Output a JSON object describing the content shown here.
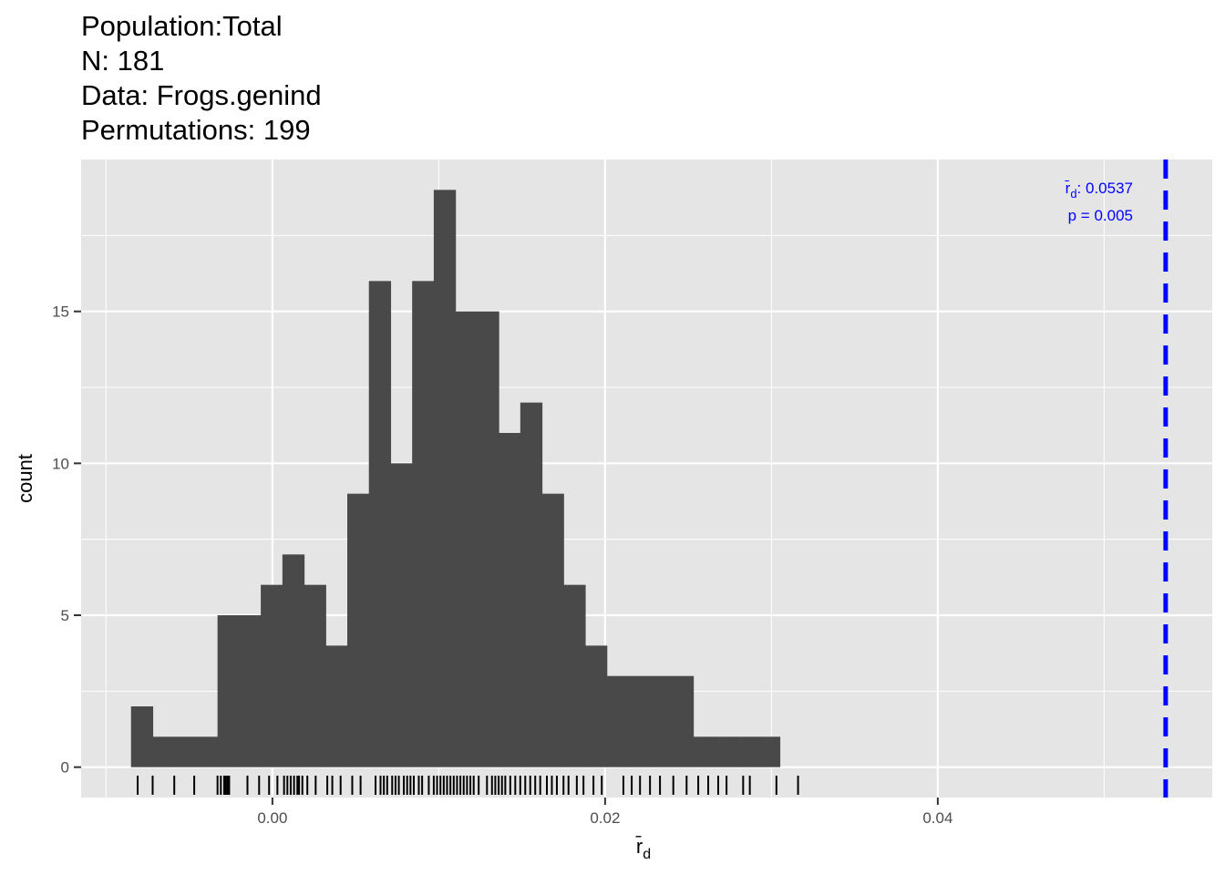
{
  "title_lines": [
    "Population:Total",
    "N: 181",
    "Data: Frogs.genind",
    "Permutations: 199"
  ],
  "chart_data": {
    "type": "bar",
    "xlabel_main": "r̄",
    "xlabel_sub": "d",
    "ylabel": "count",
    "xlim": [
      -0.0115,
      0.0565
    ],
    "ylim": [
      -1.0,
      20.0
    ],
    "x_major_ticks": [
      0.0,
      0.02,
      0.04
    ],
    "x_tick_labels": [
      "0.00",
      "0.02",
      "0.04"
    ],
    "x_minor_ticks": [
      -0.01,
      0.01,
      0.03,
      0.05
    ],
    "y_major_ticks": [
      0,
      5,
      10,
      15
    ],
    "y_tick_labels": [
      "0",
      "5",
      "10",
      "15"
    ],
    "y_minor_ticks": [
      2.5,
      7.5,
      12.5,
      17.5
    ],
    "bin_start": -0.0085,
    "bin_width": 0.0013,
    "counts": [
      2,
      1,
      1,
      1,
      5,
      5,
      6,
      7,
      6,
      4,
      9,
      16,
      10,
      16,
      19,
      15,
      15,
      11,
      12,
      9,
      6,
      4,
      3,
      3,
      3,
      3,
      1,
      1,
      1,
      1
    ],
    "rug_x": [
      -0.0081,
      -0.0072,
      -0.0059,
      -0.0047,
      -0.0033,
      -0.0031,
      -0.0029,
      -0.0028,
      -0.0027,
      -0.0026,
      -0.0015,
      -0.0008,
      -0.0002,
      0.0003,
      0.0007,
      0.0009,
      0.0011,
      0.0013,
      0.0015,
      0.0016,
      0.0018,
      0.0021,
      0.0026,
      0.0033,
      0.0036,
      0.0041,
      0.0048,
      0.0053,
      0.0062,
      0.0065,
      0.0067,
      0.0069,
      0.0072,
      0.0074,
      0.0076,
      0.0079,
      0.0081,
      0.0083,
      0.0085,
      0.0088,
      0.009,
      0.0094,
      0.0097,
      0.0099,
      0.0101,
      0.0103,
      0.0105,
      0.0107,
      0.0109,
      0.0111,
      0.0113,
      0.0115,
      0.0117,
      0.0119,
      0.0121,
      0.0124,
      0.0129,
      0.0132,
      0.0134,
      0.0136,
      0.0138,
      0.014,
      0.0143,
      0.0146,
      0.0149,
      0.0152,
      0.0155,
      0.0158,
      0.0161,
      0.0165,
      0.0168,
      0.0171,
      0.0175,
      0.0178,
      0.0183,
      0.0187,
      0.0193,
      0.0198,
      0.0211,
      0.0216,
      0.0221,
      0.0227,
      0.0233,
      0.0241,
      0.0249,
      0.0256,
      0.0262,
      0.0268,
      0.0273,
      0.0283,
      0.0287,
      0.0303,
      0.0316
    ],
    "observed": {
      "x": 0.0537,
      "label_main": "r̄",
      "label_sub": "d",
      "label_value": ": 0.0537",
      "p_label": "p = 0.005",
      "color": "#0000ff"
    },
    "bar_color": "#494949",
    "panel_color": "#e5e5e5",
    "grid_color": "#ffffff",
    "grid": true,
    "legend": "none"
  }
}
